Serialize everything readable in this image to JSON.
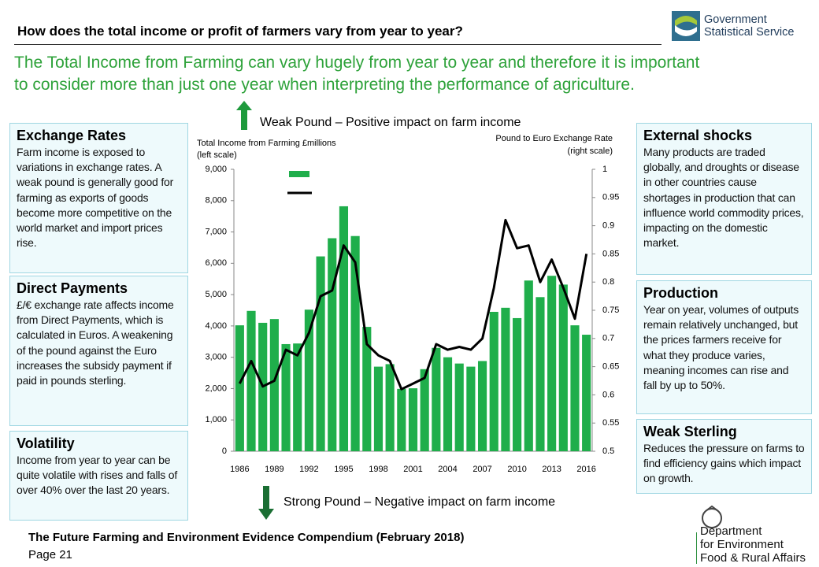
{
  "header": {
    "question": "How does the total income or profit of farmers vary from year to year?",
    "intro": [
      "The Total Income from Farming can vary hugely from year to year and therefore it is important",
      "to consider more than just one year when interpreting the performance of agriculture."
    ]
  },
  "logos": {
    "gss": [
      "Government",
      "Statistical Service"
    ],
    "defra": [
      "Department",
      "for Environment",
      "Food & Rural Affairs"
    ]
  },
  "left_boxes": [
    {
      "title": "Exchange Rates",
      "body": "Farm income is exposed to variations in exchange rates. A weak pound is generally good for farming as exports of goods become more competitive on the world market and import prices rise."
    },
    {
      "title": "Direct Payments",
      "body": "£/€ exchange rate affects income from Direct Payments, which is calculated in Euros. A weakening of the pound against the Euro increases the subsidy payment if paid in pounds sterling."
    },
    {
      "title": "Volatility",
      "body": "Income from year to year can be quite volatile with rises and falls of over 40% over the last 20 years."
    }
  ],
  "right_boxes": [
    {
      "title": "External shocks",
      "body": "Many products are traded globally, and droughts or disease in other countries cause shortages in production that can influence world commodity prices, impacting on the domestic market."
    },
    {
      "title": "Production",
      "body": "Year on year, volumes of outputs remain relatively unchanged, but the prices farmers receive for what they produce varies, meaning incomes can rise and fall by up to 50%."
    },
    {
      "title": "Weak Sterling",
      "body": "Reduces the pressure on farms to find efficiency gains which impact on growth."
    }
  ],
  "chart_data": {
    "type": "bar",
    "ylabel": [
      "Total Income from Farming £millions",
      "(left scale)"
    ],
    "y2label": [
      "Pound to Euro Exchange Rate",
      "(right scale)"
    ],
    "annotations": [
      "Weak Pound – Positive impact on farm income",
      "Strong Pound – Negative impact on farm income"
    ],
    "categories": [
      "1986",
      null,
      null,
      "1989",
      null,
      null,
      "1992",
      null,
      null,
      "1995",
      null,
      null,
      "1998",
      null,
      null,
      "2001",
      null,
      null,
      "2004",
      null,
      null,
      "2007",
      null,
      null,
      "2010",
      null,
      null,
      "2013",
      null,
      null,
      "2016"
    ],
    "series": [
      {
        "type": "bar",
        "color": "#1fae4b",
        "values": [
          4020,
          4480,
          4100,
          4220,
          3420,
          3440,
          4520,
          6220,
          6800,
          7820,
          6870,
          3970,
          2700,
          2780,
          1990,
          2010,
          2620,
          3300,
          3000,
          2800,
          2700,
          2880,
          4450,
          4580,
          4250,
          5450,
          4920,
          5600,
          5320,
          4020,
          3720
        ]
      },
      {
        "type": "line",
        "axis": "y2",
        "color": "#000000",
        "values": [
          0.62,
          0.66,
          0.615,
          0.625,
          0.68,
          0.67,
          0.71,
          0.775,
          0.785,
          0.865,
          0.835,
          0.69,
          0.67,
          0.66,
          0.61,
          0.62,
          0.63,
          0.69,
          0.68,
          0.685,
          0.68,
          0.7,
          0.79,
          0.91,
          0.86,
          0.865,
          0.8,
          0.84,
          0.79,
          0.735,
          0.85
        ]
      }
    ],
    "ylim": [
      0,
      9000
    ],
    "yticks": [
      0,
      {
        "value": 1000,
        "label": "1,000"
      },
      {
        "value": 2000,
        "label": "2,000"
      },
      {
        "value": 3000,
        "label": "3,000"
      },
      {
        "value": 4000,
        "label": "4,000"
      },
      {
        "value": 5000,
        "label": "5,000"
      },
      {
        "value": 6000,
        "label": "6,000"
      },
      {
        "value": 7000,
        "label": "7,000"
      },
      {
        "value": 8000,
        "label": "8,000"
      },
      {
        "value": 9000,
        "label": "9,000"
      }
    ],
    "y2lim": [
      0.5,
      1
    ],
    "y2ticks": [
      0.5,
      0.55,
      0.6,
      0.65,
      0.7,
      0.75,
      0.8,
      0.85,
      0.9,
      0.95,
      1
    ]
  },
  "footer": {
    "title": "The Future Farming and Environment Evidence Compendium (February 2018)",
    "page": "Page 21"
  }
}
